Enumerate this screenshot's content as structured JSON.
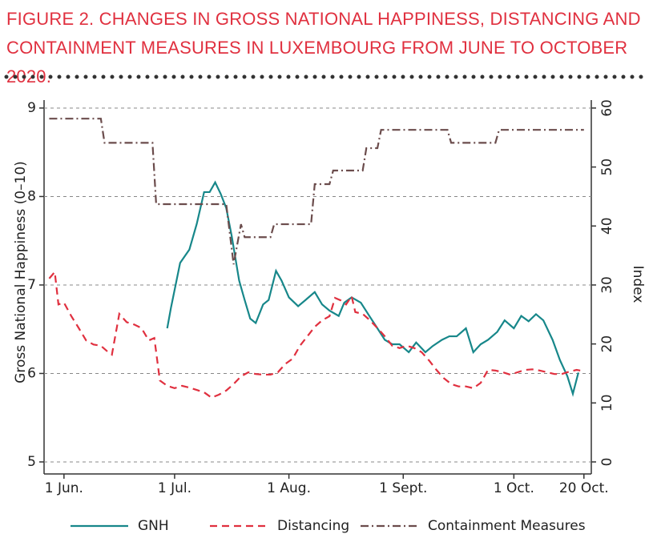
{
  "chart_data": {
    "type": "line",
    "title": "FIGURE 2. CHANGES IN GROSS NATIONAL HAPPINESS, DISTANCING AND CONTAINMENT MEASURES IN LUXEMBOURG FROM JUNE TO OCTOBER 2020.",
    "y_label": "Gross National Happiness (0–10)",
    "y2_label": "Index",
    "xlim": [
      -5.4,
      143
    ],
    "xticks": [
      {
        "value": 0,
        "label": "1 Jun."
      },
      {
        "value": 30,
        "label": "1 Jul."
      },
      {
        "value": 61,
        "label": "1 Aug."
      },
      {
        "value": 92,
        "label": "1 Sept."
      },
      {
        "value": 122,
        "label": "1 Oct."
      },
      {
        "value": 141,
        "label": "20 Oct."
      }
    ],
    "ylim": [
      4.864,
      9.09
    ],
    "yticks": [
      5,
      6,
      7,
      8,
      9
    ],
    "y2lim": [
      -2.04,
      61.35
    ],
    "y2ticks": [
      0,
      10,
      20,
      30,
      40,
      50,
      60
    ],
    "grid": true,
    "legend": "bottom",
    "series": [
      {
        "name": "GNH",
        "color": "#17878a",
        "dash": "solid",
        "x": [
          28,
          29,
          31.5,
          34,
          36,
          38,
          39.5,
          41,
          42.5,
          44,
          45.5,
          47.5,
          49,
          50.5,
          52,
          54,
          55.5,
          57.5,
          59,
          61,
          63.5,
          65.5,
          68,
          70,
          72,
          74.5,
          76,
          78,
          80.5,
          82.5,
          85,
          87,
          89,
          91,
          93.5,
          95.5,
          98,
          100,
          102.5,
          104.5,
          106.5,
          109,
          111,
          113,
          115,
          117.5,
          119.5,
          122,
          124,
          126,
          128,
          130,
          132.5,
          134.5,
          136.5,
          138,
          139.5
        ],
        "values": [
          6.51,
          6.74,
          7.25,
          7.4,
          7.69,
          8.05,
          8.05,
          8.16,
          8.03,
          7.87,
          7.55,
          7.05,
          6.83,
          6.62,
          6.57,
          6.78,
          6.83,
          7.16,
          7.05,
          6.86,
          6.76,
          6.83,
          6.92,
          6.78,
          6.71,
          6.65,
          6.8,
          6.86,
          6.8,
          6.67,
          6.51,
          6.38,
          6.33,
          6.33,
          6.24,
          6.35,
          6.24,
          6.31,
          6.38,
          6.42,
          6.42,
          6.51,
          6.24,
          6.33,
          6.38,
          6.47,
          6.6,
          6.51,
          6.65,
          6.59,
          6.67,
          6.6,
          6.38,
          6.15,
          5.97,
          5.77,
          6.01
        ]
      },
      {
        "name": "Distancing",
        "color": "#e0303f",
        "dash": "dashed",
        "axis": "y2",
        "x": [
          -4,
          -2.5,
          -1.5,
          0,
          2,
          4,
          6,
          8,
          10,
          12,
          13,
          15,
          17,
          19,
          21,
          23,
          24.5,
          26,
          28,
          30,
          32,
          34,
          36,
          38,
          40,
          42,
          44,
          46,
          48,
          50,
          52,
          54,
          56,
          58,
          60,
          62,
          64,
          66,
          68,
          70,
          72,
          73.5,
          75,
          76.5,
          78,
          79,
          81,
          83,
          85,
          87,
          89,
          91,
          93,
          95,
          97,
          99,
          101,
          103,
          105,
          107,
          109,
          111,
          113,
          115,
          117,
          119,
          121,
          123,
          125,
          127,
          129,
          131,
          133,
          135,
          137,
          139,
          140
        ],
        "values": [
          31.1,
          32.2,
          26.7,
          27,
          24.7,
          22.7,
          20.6,
          19.9,
          19.7,
          18.6,
          18.2,
          25.1,
          23.7,
          23.3,
          22.7,
          20.6,
          21,
          13.8,
          12.9,
          12.5,
          12.9,
          12.6,
          12.2,
          11.8,
          10.9,
          11.4,
          12.1,
          13.2,
          14.5,
          15.2,
          14.9,
          14.8,
          14.8,
          15.2,
          16.6,
          17.5,
          19.7,
          21.3,
          22.9,
          24,
          24.7,
          27.8,
          27.4,
          26.7,
          28.1,
          25.4,
          25.1,
          24,
          22.7,
          21.3,
          19.7,
          19.3,
          19.7,
          19.3,
          18.6,
          17.2,
          15.6,
          14.2,
          13.2,
          12.8,
          12.8,
          12.5,
          13.4,
          15.6,
          15.5,
          15.2,
          14.8,
          15.2,
          15.6,
          15.7,
          15.5,
          15.2,
          14.9,
          14.9,
          15.3,
          15.6,
          15.5
        ]
      },
      {
        "name": "Containment Measures",
        "color": "#6b4c4c",
        "dash": "dashdot",
        "axis": "y2",
        "x": [
          -4,
          10,
          11,
          24,
          25,
          44,
          46,
          48,
          49,
          56,
          57,
          67,
          68,
          72,
          73,
          81,
          82,
          85,
          86,
          104,
          105,
          117,
          118,
          141
        ],
        "values": [
          58.2,
          58.2,
          54.1,
          54.1,
          43.7,
          43.7,
          33.5,
          40.3,
          38.1,
          38.1,
          40.3,
          40.3,
          47.1,
          47.1,
          49.4,
          49.4,
          53.2,
          53.2,
          56.3,
          56.3,
          54.1,
          54.1,
          56.3,
          56.3
        ]
      }
    ]
  }
}
